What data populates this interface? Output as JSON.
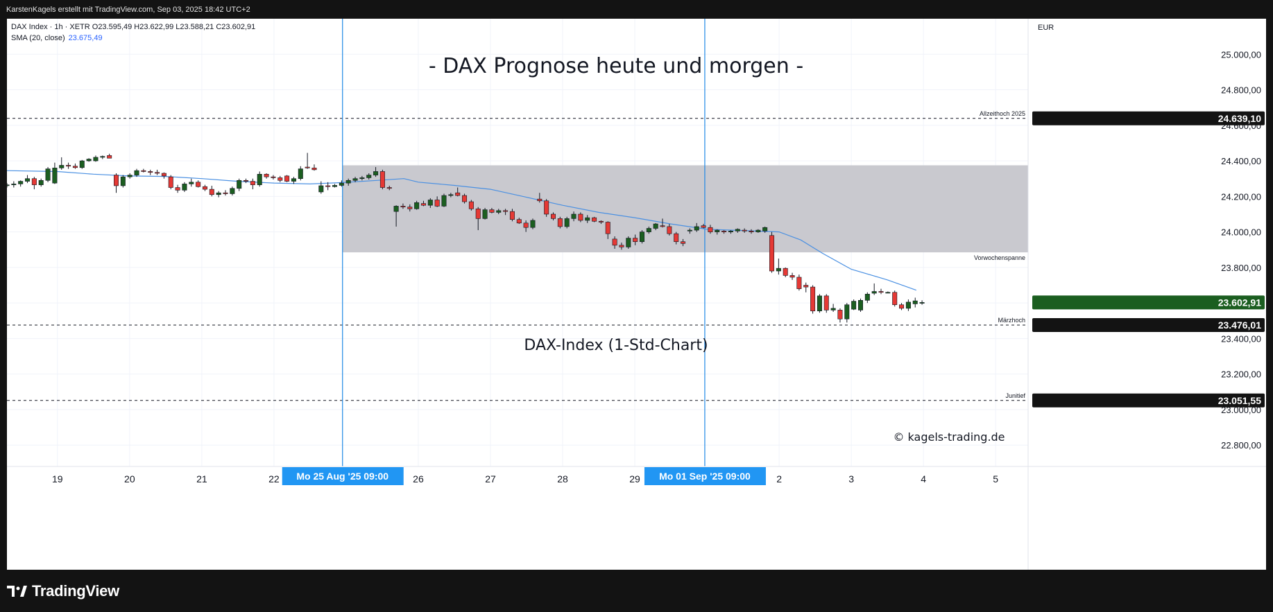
{
  "header": {
    "attribution": "KarstenKagels erstellt mit TradingView.com, Sep 03, 2025 18:42 UTC+2"
  },
  "legend": {
    "symbol_line": "DAX Index · 1h · XETR   O23.595,49   H23.622,99   L23.588,21   C23.602,91",
    "sma_label": "SMA (20, close)",
    "sma_value": "23.675,49"
  },
  "footer": {
    "brand": "TradingView"
  },
  "colors": {
    "up": "#1b5e20",
    "down": "#e53935",
    "sma": "#4a90e2",
    "session_line": "#1e88e5",
    "zone": "#c9c9cf",
    "price_label_dark": "#131313",
    "price_label_current": "#1b5e20"
  },
  "chart_data": {
    "type": "candlestick",
    "title": "- DAX Prognose heute und morgen -",
    "subtitle": "DAX-Index (1-Std-Chart)",
    "watermark": "© kagels-trading.de",
    "currency": "EUR",
    "ylim": [
      22680,
      25200
    ],
    "y_ticks": [
      {
        "v": 25000,
        "label": "25.000,00"
      },
      {
        "v": 24800,
        "label": "24.800,00"
      },
      {
        "v": 24600,
        "label": "24.600,00"
      },
      {
        "v": 24400,
        "label": "24.400,00"
      },
      {
        "v": 24200,
        "label": "24.200,00"
      },
      {
        "v": 24000,
        "label": "24.000,00"
      },
      {
        "v": 23800,
        "label": "23.800,00"
      },
      {
        "v": 23600,
        "label": "23.600,00"
      },
      {
        "v": 23400,
        "label": "23.400,00"
      },
      {
        "v": 23200,
        "label": "23.200,00"
      },
      {
        "v": 23000,
        "label": "23.000,00"
      },
      {
        "v": 22800,
        "label": "22.800,00"
      }
    ],
    "x_range": [
      -6.7,
      7.45
    ],
    "x_ticks": [
      {
        "day": -6,
        "label": "19"
      },
      {
        "day": -5,
        "label": "20"
      },
      {
        "day": -4,
        "label": "21"
      },
      {
        "day": -3,
        "label": "22"
      },
      {
        "day": -1,
        "label": "26"
      },
      {
        "day": 0,
        "label": "27"
      },
      {
        "day": 1,
        "label": "28"
      },
      {
        "day": 2,
        "label": "29"
      },
      {
        "day": 4,
        "label": "2"
      },
      {
        "day": 5,
        "label": "3"
      },
      {
        "day": 6,
        "label": "4"
      },
      {
        "day": 7,
        "label": "5"
      }
    ],
    "session_markers": [
      {
        "day": -2.05,
        "label": "Mo 25 Aug '25   09:00"
      },
      {
        "day": 2.97,
        "label": "Mo 01 Sep '25   09:00"
      }
    ],
    "levels": [
      {
        "value": 24639.1,
        "label": "24.639,10",
        "name": "Allzeithoch 2025",
        "label_style": "dark"
      },
      {
        "value": 23476.01,
        "label": "23.476,01",
        "name": "Märzhoch",
        "label_style": "dark"
      },
      {
        "value": 23051.55,
        "label": "23.051,55",
        "name": "Junitief",
        "label_style": "dark"
      }
    ],
    "current_price": {
      "value": 23602.91,
      "label": "23.602,91"
    },
    "zone": {
      "top": 24375,
      "bottom": 23885,
      "start_day": -2.05,
      "end_day": 7.45,
      "name": "Vorwochenspanne"
    },
    "candles": [
      [
        24260,
        24275,
        24250,
        24265
      ],
      [
        24265,
        24285,
        24250,
        24270
      ],
      [
        24270,
        24290,
        24255,
        24285
      ],
      [
        24285,
        24320,
        24275,
        24300
      ],
      [
        24300,
        24310,
        24240,
        24265
      ],
      [
        24265,
        24300,
        24255,
        24290
      ],
      [
        24290,
        24365,
        24280,
        24355
      ],
      [
        24275,
        24390,
        24270,
        24360
      ],
      [
        24360,
        24420,
        24350,
        24375
      ],
      [
        24375,
        24390,
        24355,
        24370
      ],
      [
        24370,
        24385,
        24355,
        24362
      ],
      [
        24362,
        24405,
        24355,
        24400
      ],
      [
        24400,
        24415,
        24395,
        24410
      ],
      [
        24400,
        24430,
        24395,
        24420
      ],
      [
        24420,
        24430,
        24410,
        24425
      ],
      [
        24430,
        24440,
        24420,
        24415
      ],
      [
        24320,
        24330,
        24220,
        24260
      ],
      [
        24260,
        24320,
        24250,
        24310
      ],
      [
        24310,
        24330,
        24300,
        24320
      ],
      [
        24320,
        24355,
        24310,
        24345
      ],
      [
        24345,
        24355,
        24335,
        24340
      ],
      [
        24340,
        24350,
        24320,
        24335
      ],
      [
        24335,
        24350,
        24320,
        24330
      ],
      [
        24330,
        24335,
        24300,
        24315
      ],
      [
        24310,
        24320,
        24240,
        24250
      ],
      [
        24250,
        24265,
        24220,
        24235
      ],
      [
        24235,
        24280,
        24225,
        24270
      ],
      [
        24270,
        24300,
        24255,
        24280
      ],
      [
        24280,
        24290,
        24250,
        24255
      ],
      [
        24255,
        24265,
        24230,
        24240
      ],
      [
        24240,
        24260,
        24200,
        24210
      ],
      [
        24210,
        24230,
        24195,
        24220
      ],
      [
        24220,
        24235,
        24205,
        24215
      ],
      [
        24215,
        24255,
        24205,
        24245
      ],
      [
        24245,
        24300,
        24230,
        24290
      ],
      [
        24290,
        24300,
        24275,
        24285
      ],
      [
        24285,
        24300,
        24240,
        24265
      ],
      [
        24265,
        24340,
        24255,
        24325
      ],
      [
        24325,
        24330,
        24300,
        24310
      ],
      [
        24310,
        24320,
        24295,
        24305
      ],
      [
        24305,
        24315,
        24280,
        24290
      ],
      [
        24315,
        24320,
        24280,
        24285
      ],
      [
        24285,
        24310,
        24270,
        24300
      ],
      [
        24300,
        24370,
        24290,
        24355
      ],
      [
        24365,
        24445,
        24355,
        24360
      ],
      [
        24360,
        24380,
        24345,
        24350
      ],
      [
        24225,
        24285,
        24215,
        24260
      ],
      [
        24260,
        24280,
        24235,
        24255
      ],
      [
        24255,
        24270,
        24250,
        24262
      ],
      [
        24262,
        24290,
        24255,
        24275
      ],
      [
        24275,
        24300,
        24260,
        24290
      ],
      [
        24290,
        24310,
        24280,
        24300
      ],
      [
        24300,
        24315,
        24290,
        24305
      ],
      [
        24305,
        24330,
        24295,
        24320
      ],
      [
        24320,
        24365,
        24310,
        24340
      ],
      [
        24340,
        24350,
        24240,
        24250
      ],
      [
        24250,
        24260,
        24235,
        24245
      ],
      [
        24115,
        24150,
        24030,
        24145
      ],
      [
        24145,
        24160,
        24130,
        24140
      ],
      [
        24140,
        24155,
        24115,
        24130
      ],
      [
        24130,
        24175,
        24125,
        24165
      ],
      [
        24160,
        24175,
        24145,
        24150
      ],
      [
        24150,
        24190,
        24135,
        24180
      ],
      [
        24180,
        24200,
        24140,
        24145
      ],
      [
        24145,
        24215,
        24140,
        24205
      ],
      [
        24205,
        24220,
        24195,
        24210
      ],
      [
        24220,
        24250,
        24200,
        24205
      ],
      [
        24205,
        24215,
        24160,
        24170
      ],
      [
        24170,
        24180,
        24120,
        24130
      ],
      [
        24130,
        24140,
        24010,
        24075
      ],
      [
        24075,
        24135,
        24070,
        24125
      ],
      [
        24125,
        24135,
        24105,
        24110
      ],
      [
        24110,
        24130,
        24100,
        24120
      ],
      [
        24120,
        24130,
        24095,
        24115
      ],
      [
        24115,
        24130,
        24060,
        24070
      ],
      [
        24070,
        24080,
        24045,
        24050
      ],
      [
        24050,
        24065,
        24000,
        24025
      ],
      [
        24025,
        24075,
        24015,
        24065
      ],
      [
        24185,
        24220,
        24165,
        24175
      ],
      [
        24175,
        24185,
        24085,
        24100
      ],
      [
        24100,
        24110,
        24065,
        24075
      ],
      [
        24075,
        24085,
        24020,
        24030
      ],
      [
        24030,
        24085,
        24020,
        24075
      ],
      [
        24075,
        24115,
        24060,
        24100
      ],
      [
        24100,
        24110,
        24055,
        24065
      ],
      [
        24065,
        24095,
        24050,
        24080
      ],
      [
        24080,
        24085,
        24055,
        24060
      ],
      [
        24060,
        24065,
        24045,
        24055
      ],
      [
        24055,
        24060,
        23960,
        23990
      ],
      [
        23960,
        23975,
        23905,
        23925
      ],
      [
        23925,
        23940,
        23900,
        23915
      ],
      [
        23915,
        23975,
        23905,
        23965
      ],
      [
        23965,
        23985,
        23925,
        23945
      ],
      [
        23945,
        24010,
        23935,
        24000
      ],
      [
        24000,
        24030,
        23990,
        24020
      ],
      [
        24020,
        24050,
        24010,
        24045
      ],
      [
        24035,
        24075,
        24025,
        24030
      ],
      [
        24030,
        24045,
        23980,
        23990
      ],
      [
        23990,
        24000,
        23930,
        23945
      ],
      [
        23945,
        23960,
        23920,
        23935
      ],
      [
        24005,
        24020,
        23990,
        24010
      ],
      [
        24010,
        24050,
        24000,
        24030
      ],
      [
        24035,
        24045,
        24020,
        24025
      ],
      [
        24025,
        24040,
        23990,
        24000
      ],
      [
        24000,
        24015,
        23985,
        24010
      ],
      [
        24005,
        24010,
        23990,
        24000
      ],
      [
        24000,
        24010,
        23990,
        24005
      ],
      [
        24005,
        24020,
        23995,
        24015
      ],
      [
        24010,
        24020,
        23995,
        24005
      ],
      [
        24005,
        24015,
        23990,
        24000
      ],
      [
        24000,
        24015,
        23995,
        24010
      ],
      [
        24005,
        24030,
        23995,
        24025
      ],
      [
        23980,
        24000,
        23770,
        23780
      ],
      [
        23780,
        23850,
        23760,
        23795
      ],
      [
        23795,
        23800,
        23745,
        23755
      ],
      [
        23755,
        23770,
        23730,
        23745
      ],
      [
        23745,
        23760,
        23670,
        23680
      ],
      [
        23700,
        23715,
        23660,
        23690
      ],
      [
        23690,
        23700,
        23540,
        23555
      ],
      [
        23555,
        23650,
        23545,
        23640
      ],
      [
        23640,
        23650,
        23545,
        23560
      ],
      [
        23560,
        23595,
        23550,
        23570
      ],
      [
        23560,
        23570,
        23490,
        23510
      ],
      [
        23510,
        23600,
        23490,
        23590
      ],
      [
        23565,
        23620,
        23560,
        23610
      ],
      [
        23560,
        23625,
        23550,
        23615
      ],
      [
        23615,
        23660,
        23600,
        23650
      ],
      [
        23655,
        23710,
        23645,
        23665
      ],
      [
        23665,
        23680,
        23650,
        23660
      ],
      [
        23660,
        23665,
        23655,
        23660
      ],
      [
        23660,
        23670,
        23580,
        23590
      ],
      [
        23590,
        23600,
        23560,
        23570
      ],
      [
        23570,
        23620,
        23555,
        23605
      ],
      [
        23595,
        23630,
        23575,
        23612
      ],
      [
        23600,
        23615,
        23590,
        23603
      ]
    ],
    "sma": [
      [
        -6.7,
        24345
      ],
      [
        -6.0,
        24340
      ],
      [
        -5.5,
        24325
      ],
      [
        -5.0,
        24315
      ],
      [
        -4.5,
        24312
      ],
      [
        -4.0,
        24300
      ],
      [
        -3.5,
        24285
      ],
      [
        -3.0,
        24275
      ],
      [
        -2.5,
        24270
      ],
      [
        -2.05,
        24278
      ],
      [
        -1.5,
        24292
      ],
      [
        -1.2,
        24300
      ],
      [
        -1.0,
        24280
      ],
      [
        -0.5,
        24262
      ],
      [
        0.0,
        24240
      ],
      [
        0.5,
        24195
      ],
      [
        1.0,
        24150
      ],
      [
        1.5,
        24110
      ],
      [
        2.0,
        24080
      ],
      [
        2.5,
        24045
      ],
      [
        3.0,
        24015
      ],
      [
        3.5,
        24008
      ],
      [
        4.0,
        24000
      ],
      [
        4.3,
        23955
      ],
      [
        4.6,
        23880
      ],
      [
        5.0,
        23790
      ],
      [
        5.5,
        23730
      ],
      [
        5.9,
        23672
      ]
    ],
    "sma_name": "SMA (20, close)"
  }
}
